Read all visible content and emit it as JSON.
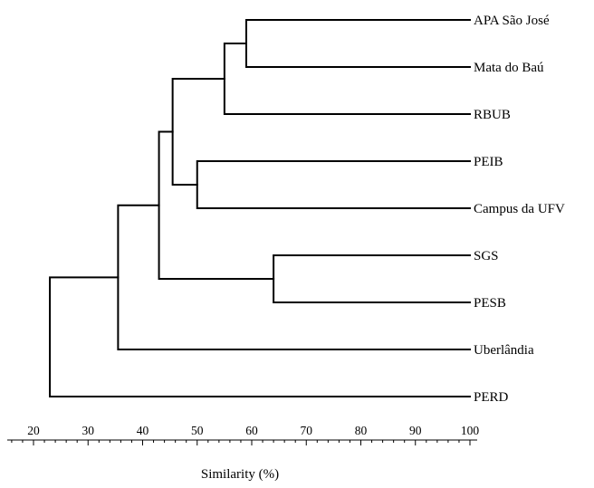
{
  "figure": {
    "leaves": [
      "APA São José",
      "Mata do Baú",
      "RBUB",
      "PEIB",
      "Campus da UFV",
      "SGS",
      "PESB",
      "Uberlândia",
      "PERD"
    ],
    "merges": [
      {
        "left": "APA São José",
        "right": "Mata do Baú",
        "similarity": 59
      },
      {
        "left": "node1",
        "right": "RBUB",
        "similarity": 55
      },
      {
        "left": "PEIB",
        "right": "Campus da UFV",
        "similarity": 50
      },
      {
        "left": "node2",
        "right": "node3",
        "similarity": 45.5
      },
      {
        "left": "SGS",
        "right": "PESB",
        "similarity": 64
      },
      {
        "left": "node4",
        "right": "node5",
        "similarity": 43
      },
      {
        "left": "node6",
        "right": "Uberlândia",
        "similarity": 35.5
      },
      {
        "left": "node7",
        "right": "PERD",
        "similarity": 23
      }
    ],
    "axis": {
      "ticks": [
        "20",
        "30",
        "40",
        "50",
        "60",
        "70",
        "80",
        "90",
        "100"
      ],
      "min": 20,
      "max": 100,
      "title": "Similarity (%)"
    }
  }
}
